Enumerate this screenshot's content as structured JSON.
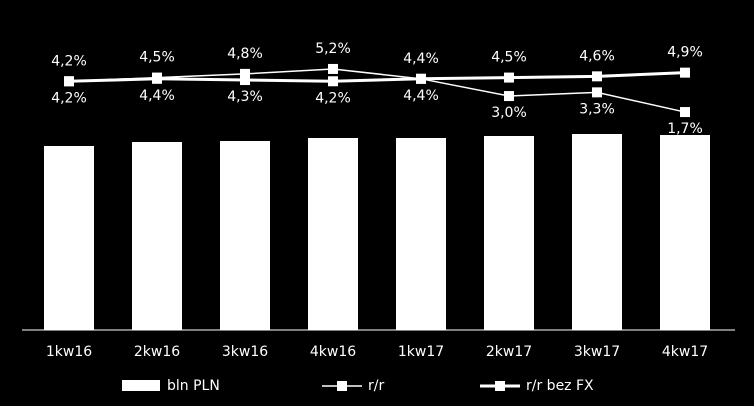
{
  "chart_data": {
    "type": "bar-line",
    "categories": [
      "1kw16",
      "2kw16",
      "3kw16",
      "4kw16",
      "1kw17",
      "2kw17",
      "3kw17",
      "4kw17"
    ],
    "bars": {
      "name": "bln PLN",
      "color": "#ffffff",
      "values": [
        184,
        188,
        189,
        192,
        192,
        194,
        196,
        195
      ]
    },
    "ylim": [
      0,
      330
    ],
    "y2lim": [
      -16,
      10.8
    ],
    "series": [
      {
        "name": "r/r",
        "color": "#ffffff",
        "axis": "y2",
        "values": [
          4.2,
          4.5,
          4.8,
          5.2,
          4.4,
          3.0,
          3.3,
          1.7
        ],
        "value_labels": [
          "4,2%",
          "4,5%",
          "4,8%",
          "5,2%",
          "4,4%",
          "3,0%",
          "3,3%",
          "1,7%"
        ]
      },
      {
        "name": "r/r bez FX",
        "color": "#ffffff",
        "axis": "y2",
        "values": [
          4.2,
          4.4,
          4.3,
          4.2,
          4.4,
          4.5,
          4.6,
          4.9
        ],
        "value_labels": [
          "4,2%",
          "4,4%",
          "4,3%",
          "4,2%",
          "4,4%",
          "4,5%",
          "4,6%",
          "4,9%"
        ]
      }
    ]
  }
}
